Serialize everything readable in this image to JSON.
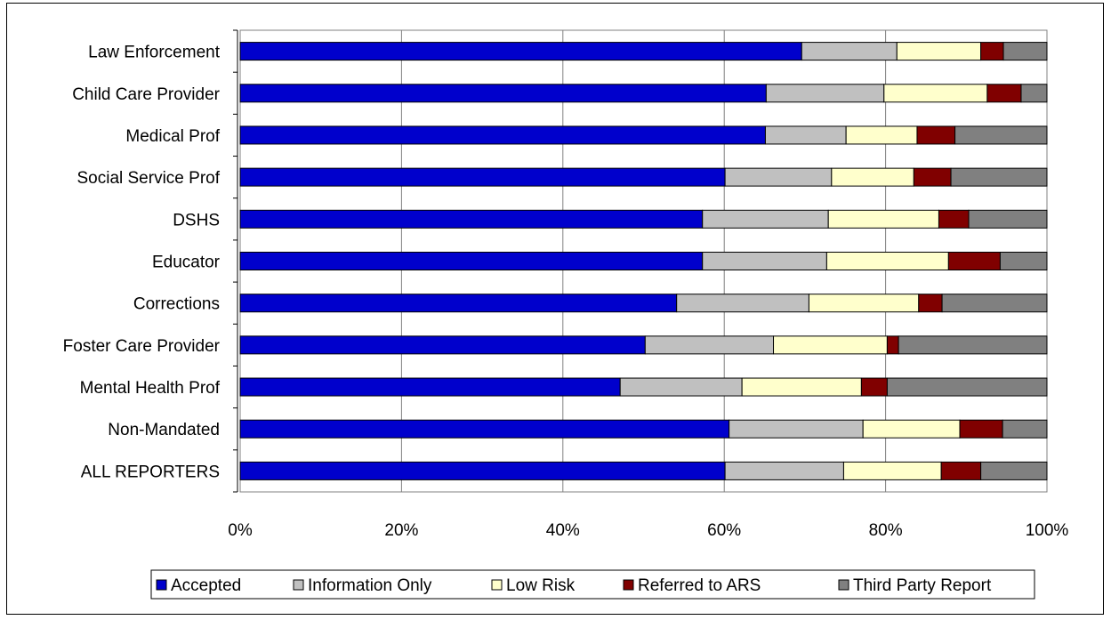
{
  "chart_data": {
    "type": "bar",
    "orientation": "horizontal",
    "stacked": "percent",
    "title": "",
    "xlabel": "",
    "ylabel": "",
    "xlim": [
      0,
      100
    ],
    "x_ticks": [
      "0%",
      "20%",
      "40%",
      "60%",
      "80%",
      "100%"
    ],
    "grid": "vertical",
    "legend_position": "bottom",
    "categories": [
      "Law Enforcement",
      "Child Care Provider",
      "Medical Prof",
      "Social Service Prof",
      "DSHS",
      "Educator",
      "Corrections",
      "Foster Care Provider",
      "Mental Health Prof",
      "Non-Mandated",
      "ALL REPORTERS"
    ],
    "series": [
      {
        "name": "Accepted",
        "color": "#0000cc",
        "values": [
          69.6,
          65.2,
          65.1,
          60.1,
          57.3,
          57.3,
          54.1,
          50.2,
          47.1,
          60.6,
          60.1
        ]
      },
      {
        "name": "Information Only",
        "color": "#c0c0c0",
        "values": [
          11.8,
          14.6,
          10.0,
          13.2,
          15.6,
          15.4,
          16.4,
          15.9,
          15.1,
          16.6,
          14.7
        ]
      },
      {
        "name": "Low Risk",
        "color": "#ffffcc",
        "values": [
          10.4,
          12.8,
          8.8,
          10.2,
          13.7,
          15.1,
          13.6,
          14.1,
          14.8,
          12.0,
          12.1
        ]
      },
      {
        "name": "Referred to ARS",
        "color": "#800000",
        "values": [
          2.8,
          4.2,
          4.7,
          4.6,
          3.7,
          6.4,
          2.9,
          1.4,
          3.2,
          5.3,
          4.9
        ]
      },
      {
        "name": "Third Party Report",
        "color": "#808080",
        "values": [
          5.4,
          3.2,
          11.4,
          11.9,
          9.7,
          5.8,
          13.0,
          18.4,
          19.8,
          5.5,
          8.2
        ]
      }
    ]
  }
}
